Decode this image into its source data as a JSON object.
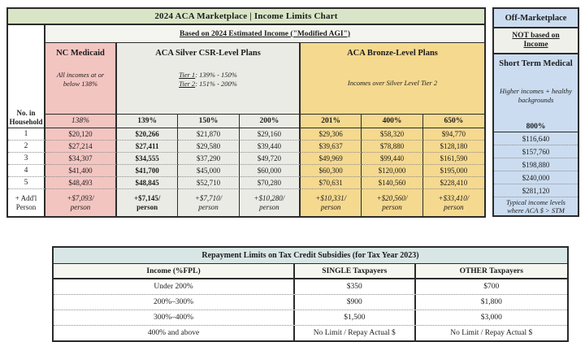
{
  "colors": {
    "title_green": "#d9e5c6",
    "medicaid_pink": "#f3c5c1",
    "silver_gray": "#ebebe6",
    "bronze_tan": "#f5d98f",
    "offmarket_blue": "#cbdcf0",
    "repay_header": "#d9e6e6"
  },
  "main_table": {
    "title": "2024 ACA Marketplace | Income Limits Chart",
    "subtitle": "Based on 2024 Estimated Income (\"Modified AGI\")",
    "row_header": [
      "No. in",
      "Household"
    ],
    "groups": {
      "medicaid": {
        "title": "NC Medicaid",
        "note": [
          "All incomes at or",
          "below 138%"
        ],
        "percent": "138%"
      },
      "silver": {
        "title": "ACA Silver CSR-Level Plans",
        "tier1": {
          "label": "Tier 1",
          "range": ": 139% - 150%"
        },
        "tier2": {
          "label": "Tier 2",
          "range": ": 151% - 200%"
        },
        "percents": [
          "139%",
          "150%",
          "200%"
        ]
      },
      "bronze": {
        "title": "ACA Bronze-Level Plans",
        "note": "Incomes over Silver Level Tier 2",
        "percents": [
          "201%",
          "400%",
          "650%"
        ]
      }
    },
    "rows": [
      [
        "1",
        "$20,120",
        "$20,266",
        "$21,870",
        "$29,160",
        "$29,306",
        "$58,320",
        "$94,770"
      ],
      [
        "2",
        "$27,214",
        "$27,411",
        "$29,580",
        "$39,440",
        "$39,637",
        "$78,880",
        "$128,180"
      ],
      [
        "3",
        "$34,307",
        "$34,555",
        "$37,290",
        "$49,720",
        "$49,969",
        "$99,440",
        "$161,590"
      ],
      [
        "4",
        "$41,400",
        "$41,700",
        "$45,000",
        "$60,000",
        "$60,300",
        "$120,000",
        "$195,000"
      ],
      [
        "5",
        "$48,493",
        "$48,845",
        "$52,710",
        "$70,280",
        "$70,631",
        "$140,560",
        "$228,410"
      ]
    ],
    "addl": {
      "label": [
        "+ Add'l",
        "Person"
      ],
      "cells": [
        [
          "+$7,093/",
          "person"
        ],
        [
          "+$7,145/",
          "person"
        ],
        [
          "+$7,710/",
          "person"
        ],
        [
          "+$10,280/",
          "person"
        ],
        [
          "+$10,331/",
          "person"
        ],
        [
          "+$20,560/",
          "person"
        ],
        [
          "+$33,410/",
          "person"
        ]
      ]
    }
  },
  "side_panel": {
    "header": "Off-Marketplace",
    "subheader": [
      "NOT based on",
      "Income"
    ],
    "title": "Short Term Medical",
    "note": [
      "Higher incomes + healthy",
      "backgrounds"
    ],
    "percent": "800%",
    "values": [
      "$116,640",
      "$157,760",
      "$198,880",
      "$240,000",
      "$281,120"
    ],
    "footer": [
      "Typical income levels",
      "where ACA $ > STM"
    ]
  },
  "repayment_table": {
    "title": "Repayment Limits on Tax Credit Subsidies (for Tax Year 2023)",
    "headers": [
      "Income (%FPL)",
      "SINGLE Taxpayers",
      "OTHER Taxpayers"
    ],
    "rows": [
      [
        "Under 200%",
        "$350",
        "$700"
      ],
      [
        "200%–300%",
        "$900",
        "$1,800"
      ],
      [
        "300%–400%",
        "$1,500",
        "$3,000"
      ],
      [
        "400% and above",
        "No Limit / Repay Actual $",
        "No Limit / Repay Actual $"
      ]
    ]
  }
}
